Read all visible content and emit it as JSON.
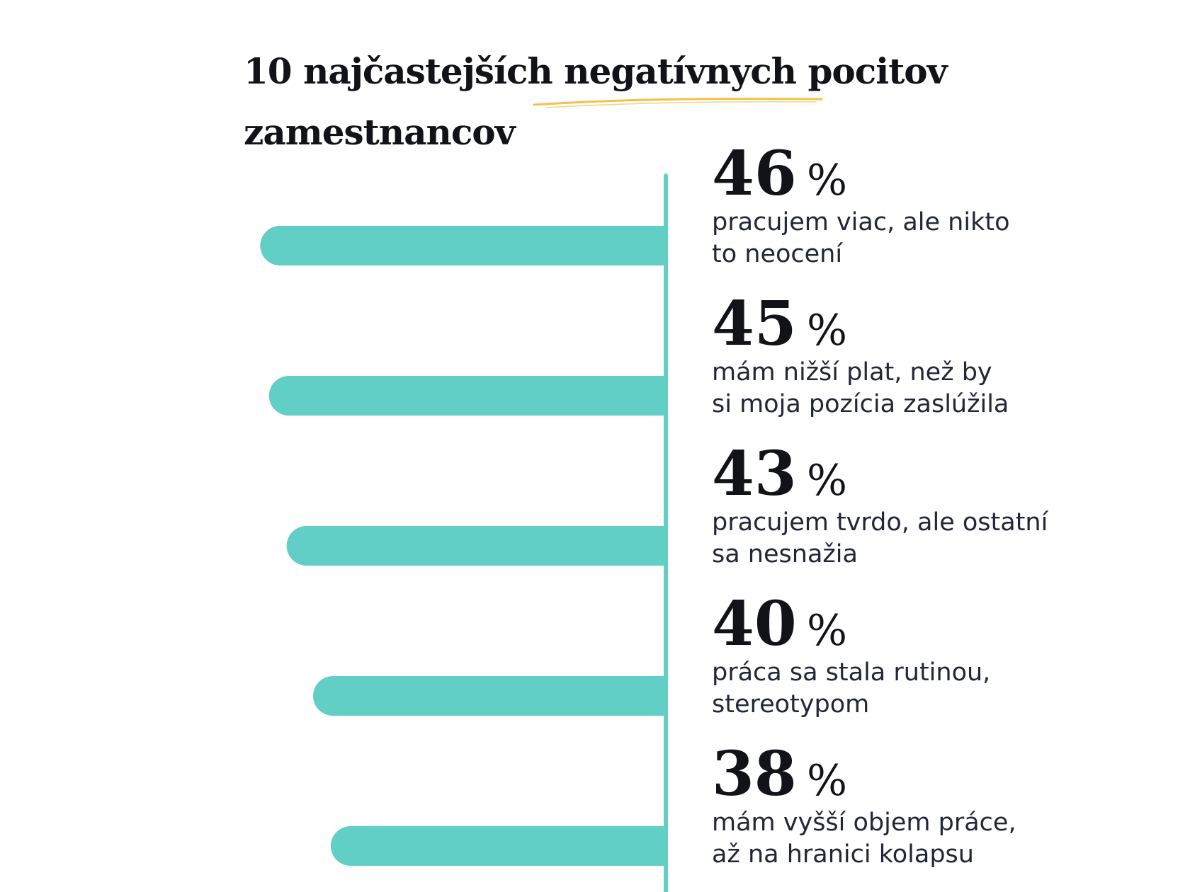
{
  "header": {
    "title_line1": "10 najčastejších negatívnych pocitov",
    "title_line2": "zamestnancov"
  },
  "colors": {
    "bar": "#62cfc6",
    "axis": "#62cfc6",
    "title_underline": "#f0c24a",
    "text": "#23263a",
    "heading": "#111318"
  },
  "chart_data": {
    "type": "bar",
    "orientation": "horizontal",
    "title": "10 najčastejších negatívnych pocitov zamestnancov",
    "value_suffix": " %",
    "bars": [
      {
        "value": 46,
        "label_lines": [
          "pracujem viac, ale nikto",
          "to neocení"
        ]
      },
      {
        "value": 45,
        "label_lines": [
          "mám nižší plat, než by",
          "si moja pozícia zaslúžila"
        ]
      },
      {
        "value": 43,
        "label_lines": [
          "pracujem tvrdo, ale ostatní",
          "sa nesnažia"
        ]
      },
      {
        "value": 40,
        "label_lines": [
          "práca sa stala rutinou,",
          "stereotypom"
        ]
      },
      {
        "value": 38,
        "label_lines": [
          "mám vyšší objem práce,",
          "až na hranici kolapsu"
        ]
      }
    ]
  }
}
